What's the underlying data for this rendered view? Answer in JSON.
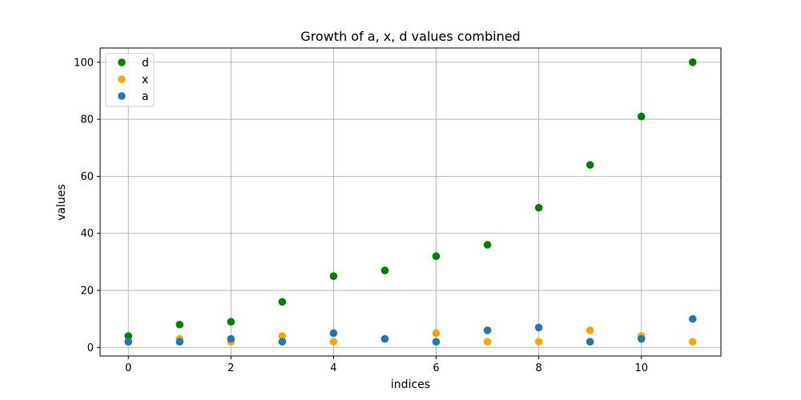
{
  "chart_data": {
    "type": "scatter",
    "title": "Growth of a, x, d values combined",
    "xlabel": "indices",
    "ylabel": "values",
    "xlim": [
      -0.55,
      11.55
    ],
    "ylim": [
      -3,
      105
    ],
    "xticks": [
      0,
      2,
      4,
      6,
      8,
      10
    ],
    "yticks": [
      0,
      20,
      40,
      60,
      80,
      100
    ],
    "grid": true,
    "legend_position": "top-left",
    "x": [
      0,
      1,
      2,
      3,
      4,
      5,
      6,
      7,
      8,
      9,
      10,
      11
    ],
    "series": [
      {
        "name": "d",
        "color": "#008000",
        "values": [
          4,
          8,
          9,
          16,
          25,
          27,
          32,
          36,
          49,
          64,
          81,
          100
        ]
      },
      {
        "name": "x",
        "color": "#ffa500",
        "values": [
          2,
          3,
          2,
          4,
          2,
          3,
          5,
          2,
          2,
          6,
          4,
          2
        ]
      },
      {
        "name": "a",
        "color": "#1f77b4",
        "values": [
          2,
          2,
          3,
          2,
          5,
          3,
          2,
          6,
          7,
          2,
          3,
          10
        ]
      }
    ]
  }
}
